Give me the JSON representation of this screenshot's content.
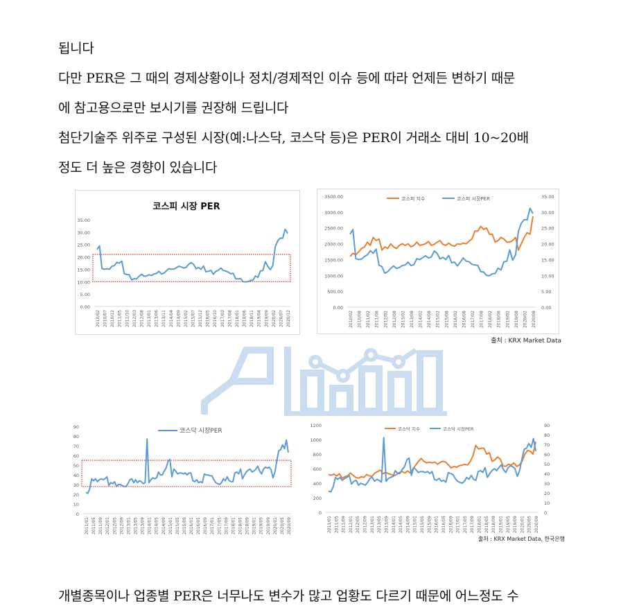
{
  "paragraphs": {
    "p1": "됩니다",
    "p2": "다만 PER은 그 때의 경제상황이나 정치/경제적인 이슈 등에 따라 언제든 변하기 때문",
    "p3": "에 참고용으로만 보시기를 권장해 드립니다",
    "p4": "첨단기술주 위주로 구성된 시장(예:나스닥, 코스닥 등)은 PER이 거래소 대비 10~20배",
    "p5": "정도 더 높은 경향이 있습니다",
    "p6": "개별종목이나 업종별 PER은 너무나도 변수가 많고 업황도 다르기 때문에 어느정도 수"
  },
  "colors": {
    "blue": "#5b9bd5",
    "orange": "#ed7d31",
    "red_box": "#e03030",
    "axis_text": "#595959",
    "watermark": "#c9dcf0"
  },
  "chart_data": [
    {
      "id": "kospi-per",
      "type": "line",
      "title": "코스피 시장 PER",
      "xlabel": "",
      "ylabel": "",
      "ylim": [
        0,
        35
      ],
      "yticks": [
        "0.00",
        "5.00",
        "10.00",
        "15.00",
        "20.00",
        "25.00",
        "30.00",
        "35.00"
      ],
      "categories": [
        "2010/02",
        "2010/07",
        "2010/12",
        "2011/05",
        "2011/10",
        "2012/03",
        "2012/08",
        "2013/01",
        "2013/06",
        "2013/11",
        "2014/04",
        "2014/09",
        "2015/02",
        "2015/07",
        "2015/12",
        "2016/05",
        "2016/10",
        "2017/03",
        "2017/08",
        "2018/01",
        "2018/06",
        "2018/11",
        "2019/04",
        "2019/09",
        "2020/02",
        "2020/07",
        "2020/12"
      ],
      "series": [
        {
          "name": "코스피 시장 PER",
          "values": [
            23,
            24.5,
            15.3,
            15,
            15.2,
            15,
            16.2,
            16.5,
            17.8,
            17.5,
            18.3,
            13.2,
            12.9,
            12.8,
            10.7,
            11.2,
            11.1,
            12.2,
            13,
            12.2,
            12.3,
            12.8,
            12.5,
            13.1,
            13.3,
            14.2,
            13.1,
            13.4,
            14.4,
            15.3,
            15,
            15.1,
            15.6,
            16.2,
            16,
            15.5,
            15.8,
            17,
            17.7,
            17,
            15.2,
            15.7,
            15,
            16.3,
            14,
            14.2,
            14.6,
            13,
            14.2,
            14.6,
            15.5,
            14.5,
            14.3,
            13.9,
            13.2,
            13.4,
            11.2,
            11.1,
            11.3,
            10,
            9.9,
            10,
            10.5,
            10.6,
            12.3,
            11.7,
            14.3,
            14.5,
            18.1,
            16.2,
            14.8,
            16.5,
            24,
            26.5,
            27.6,
            27.5,
            31.2,
            29.5
          ]
        }
      ],
      "annotations": [
        {
          "type": "dotted-rect",
          "y_from": 10,
          "y_to": 21
        }
      ],
      "grid": false,
      "legend": "none"
    },
    {
      "id": "kospi-index-vs-per",
      "type": "line",
      "title": "",
      "ylim_left": [
        0,
        3500
      ],
      "ylim_right": [
        0,
        35
      ],
      "yticks_left": [
        "0.00",
        "500.00",
        "1000.00",
        "1500.00",
        "2000.00",
        "2500.00",
        "3000.00",
        "3500.00"
      ],
      "yticks_right": [
        "0.00",
        "5.00",
        "10.00",
        "15.00",
        "20.00",
        "25.00",
        "30.00",
        "35.00"
      ],
      "categories": [
        "2010/02",
        "2010/08",
        "2011/02",
        "2011/08",
        "2012/02",
        "2012/08",
        "2013/02",
        "2013/08",
        "2014/02",
        "2014/08",
        "2015/02",
        "2015/08",
        "2016/02",
        "2016/08",
        "2017/02",
        "2017/08",
        "2018/02",
        "2018/08",
        "2019/02",
        "2019/08",
        "2020/02",
        "2020/08"
      ],
      "series": [
        {
          "name": "코스피 지수",
          "axis": "left",
          "values": [
            1600,
            1700,
            1650,
            1750,
            1850,
            1900,
            2050,
            1950,
            2200,
            2100,
            2150,
            1800,
            1900,
            1850,
            2000,
            1900,
            1850,
            1950,
            2000,
            1950,
            2000,
            1900,
            1950,
            2050,
            1950,
            1970,
            2000,
            2070,
            1950,
            1980,
            2050,
            2100,
            1980,
            1950,
            2020,
            1950,
            1920,
            2000,
            1980,
            2020,
            2000,
            2080,
            2150,
            2400,
            2400,
            2550,
            2450,
            2500,
            2300,
            2300,
            2050,
            2100,
            2200,
            2150,
            2050,
            2050,
            2100,
            2200,
            1800,
            2000,
            2200,
            2350,
            2300,
            2870
          ]
        },
        {
          "name": "코스피 시장PER",
          "axis": "right",
          "values": [
            23,
            24.5,
            15.3,
            15,
            15.2,
            16,
            16.5,
            17.8,
            17,
            18.3,
            13.2,
            12.8,
            10.7,
            11.2,
            12.2,
            13,
            12.2,
            12.5,
            13.1,
            13.3,
            14.2,
            13.1,
            13.4,
            15.3,
            15,
            15.6,
            16.2,
            15.5,
            15.8,
            17.7,
            17,
            15.2,
            15.7,
            15,
            16.3,
            14,
            14.2,
            13,
            14.2,
            15.5,
            14.5,
            14.3,
            13.5,
            13.3,
            13.2,
            11.2,
            11.1,
            10,
            9.9,
            10.5,
            10.6,
            12.3,
            11.7,
            14.3,
            14.5,
            18.1,
            14.8,
            16.5,
            24,
            26.5,
            27.6,
            27.5,
            31.2,
            29.5
          ]
        }
      ],
      "legend": {
        "position": "top",
        "entries": [
          "코스피 지수",
          "코스피 시장PER"
        ]
      },
      "source": "출처 : KRX Market Data"
    },
    {
      "id": "kosdaq-per",
      "type": "line",
      "title": "",
      "ylim": [
        0,
        90
      ],
      "yticks": [
        "0",
        "10",
        "20",
        "30",
        "40",
        "50",
        "60",
        "70",
        "80",
        "90"
      ],
      "categories": [
        "2011/01",
        "2011/05",
        "2011/09",
        "2012/01",
        "2012/05",
        "2012/09",
        "2013/01",
        "2013/05",
        "2013/09",
        "2014/01",
        "2014/05",
        "2014/09",
        "2015/01",
        "2015/05",
        "2015/09",
        "2016/01",
        "2016/05",
        "2016/09",
        "2017/01",
        "2017/05",
        "2017/09",
        "2018/01",
        "2018/05",
        "2018/09",
        "2019/01",
        "2019/05",
        "2019/09",
        "2020/01",
        "2020/05",
        "2020/09"
      ],
      "series": [
        {
          "name": "코스닥 시장PER",
          "values": [
            22,
            21,
            26,
            36,
            34,
            36,
            33,
            35,
            36,
            35,
            36,
            38,
            29,
            32,
            31,
            33,
            28,
            30,
            30,
            29,
            28,
            28,
            31,
            35,
            36,
            32,
            35,
            32,
            34,
            33,
            31,
            32,
            77,
            32,
            35,
            37,
            36,
            37,
            43,
            40,
            40,
            44,
            47,
            54,
            56,
            38,
            46,
            44,
            41,
            42,
            42,
            41,
            42,
            40,
            42,
            42,
            34,
            33,
            35,
            32,
            33,
            32,
            41,
            40,
            40,
            39,
            39,
            35,
            32,
            31,
            30,
            32,
            36,
            34,
            38,
            34,
            33,
            33,
            42,
            43,
            41,
            46,
            36,
            40,
            43,
            45,
            46,
            43,
            44,
            46,
            49,
            44,
            41,
            46,
            48,
            47,
            48,
            45,
            37,
            43,
            55,
            65,
            66,
            71,
            67,
            76,
            63
          ]
        }
      ],
      "annotations": [
        {
          "type": "dotted-rect",
          "y_from": 28,
          "y_to": 55
        }
      ],
      "legend": {
        "position": "top",
        "entries": [
          "코스닥 시장PER"
        ]
      }
    },
    {
      "id": "kosdaq-index-vs-per",
      "type": "line",
      "title": "",
      "ylim_left": [
        0,
        1200
      ],
      "ylim_right": [
        0,
        90
      ],
      "yticks_left": [
        "0",
        "200",
        "400",
        "600",
        "800",
        "1000",
        "1200"
      ],
      "yticks_right": [
        "0",
        "10",
        "20",
        "30",
        "40",
        "50",
        "60",
        "70",
        "80",
        "90"
      ],
      "categories": [
        "2011/01",
        "2011/05",
        "2011/09",
        "2012/01",
        "2012/05",
        "2012/09",
        "2013/01",
        "2013/05",
        "2013/09",
        "2014/01",
        "2014/05",
        "2014/09",
        "2015/01",
        "2015/05",
        "2015/09",
        "2016/01",
        "2016/05",
        "2016/09",
        "2017/01",
        "2017/05",
        "2017/09",
        "2018/01",
        "2018/05",
        "2018/09",
        "2019/01",
        "2019/05",
        "2019/09",
        "2020/01",
        "2020/05",
        "2020/09"
      ],
      "series": [
        {
          "name": "코스닥 지수",
          "axis": "left",
          "values": [
            520,
            510,
            525,
            500,
            530,
            470,
            490,
            500,
            540,
            510,
            480,
            470,
            490,
            480,
            520,
            500,
            495,
            540,
            560,
            580,
            530,
            550,
            530,
            520,
            500,
            520,
            550,
            560,
            540,
            570,
            540,
            600,
            650,
            700,
            740,
            700,
            680,
            690,
            680,
            690,
            660,
            690,
            700,
            690,
            650,
            610,
            630,
            620,
            640,
            650,
            660,
            650,
            700,
            780,
            920,
            870,
            880,
            880,
            800,
            820,
            700,
            720,
            760,
            730,
            640,
            630,
            660,
            650,
            680,
            630,
            650,
            700,
            800,
            850,
            840,
            800,
            970
          ]
        },
        {
          "name": "코스닥 시장PER",
          "axis": "right",
          "values": [
            22,
            21,
            26,
            36,
            34,
            36,
            33,
            35,
            36,
            38,
            29,
            32,
            33,
            28,
            30,
            29,
            28,
            31,
            35,
            36,
            32,
            34,
            33,
            31,
            77,
            32,
            35,
            36,
            37,
            43,
            40,
            40,
            44,
            47,
            54,
            56,
            38,
            46,
            44,
            41,
            42,
            42,
            41,
            42,
            40,
            42,
            34,
            33,
            35,
            32,
            33,
            31,
            41,
            40,
            39,
            35,
            32,
            31,
            30,
            32,
            36,
            34,
            38,
            34,
            33,
            42,
            43,
            41,
            46,
            36,
            40,
            43,
            45,
            43,
            46,
            49,
            44,
            41,
            46,
            48,
            47,
            45,
            37,
            43,
            55,
            65,
            66,
            71,
            67,
            76,
            63
          ]
        }
      ],
      "legend": {
        "position": "top",
        "entries": [
          "코스닥 지수",
          "코스닥 시장PER"
        ]
      },
      "source": "출처 : KRX Market Data, 한국은행"
    }
  ]
}
